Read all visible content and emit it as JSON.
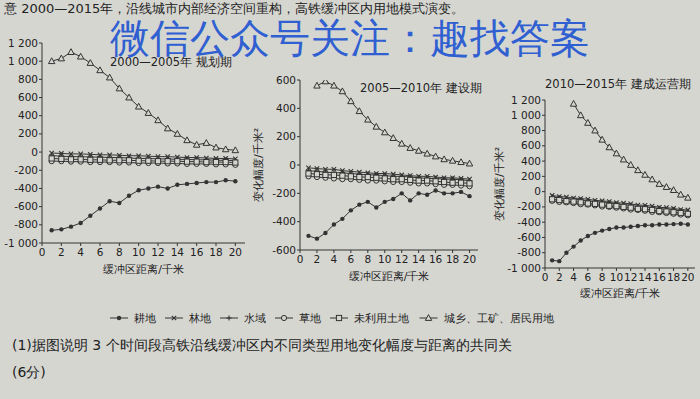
{
  "header": "意 2000—2015年，沿线城市内部经济空间重构，高铁缓冲区内用地模式演变。",
  "watermark": "微信公众号关注：趣找答案",
  "question": {
    "text": "(1)据图说明 3 个时间段高铁沿线缓冲区内不同类型用地变化幅度与距离的共同关",
    "score": "(6分)"
  },
  "chart_data": [
    {
      "type": "line",
      "title": "2000—2005年 规划期",
      "x_label": "缓冲区距离/千米",
      "x": [
        1,
        2,
        3,
        4,
        5,
        6,
        7,
        8,
        9,
        10,
        11,
        12,
        13,
        14,
        15,
        16,
        17,
        18,
        19,
        20
      ],
      "xlim": [
        0,
        21
      ],
      "xticks": [
        0,
        2,
        4,
        6,
        8,
        10,
        12,
        14,
        16,
        18,
        20
      ],
      "ylim": [
        -1000,
        1200
      ],
      "yticks": [
        {
          "value": -1000,
          "label": "-1 000"
        },
        -800,
        -600,
        -400,
        -200,
        0,
        200,
        400,
        600,
        800,
        {
          "value": 1000,
          "label": "1 000"
        },
        {
          "value": 1200,
          "label": "1 200"
        }
      ],
      "grid": false,
      "series": [
        {
          "name": "耕地",
          "color": "#333333",
          "marker": "dot",
          "values": [
            -860,
            -850,
            -820,
            -780,
            -700,
            -620,
            -540,
            -560,
            -480,
            -420,
            -400,
            -380,
            -400,
            -360,
            -350,
            -340,
            -330,
            -330,
            -310,
            -320
          ]
        },
        {
          "name": "林地",
          "color": "#333333",
          "marker": "x",
          "values": [
            -10,
            -15,
            -20,
            -20,
            -25,
            -30,
            -30,
            -35,
            -40,
            -40,
            -45,
            -50,
            -50,
            -55,
            -60,
            -60,
            -65,
            -70,
            -70,
            -75
          ]
        },
        {
          "name": "水域",
          "color": "#333333",
          "marker": "plus",
          "values": [
            -40,
            -45,
            -50,
            -50,
            -55,
            -55,
            -60,
            -60,
            -65,
            -70,
            -70,
            -75,
            -75,
            -80,
            -80,
            -85,
            -85,
            -90,
            -90,
            -95
          ]
        },
        {
          "name": "草地",
          "color": "#333333",
          "marker": "circle",
          "values": [
            -100,
            -100,
            -105,
            -105,
            -110,
            -110,
            -110,
            -115,
            -115,
            -120,
            -120,
            -120,
            -125,
            -125,
            -130,
            -130,
            -130,
            -135,
            -135,
            -140
          ]
        },
        {
          "name": "未利用土地",
          "color": "#333333",
          "marker": "square",
          "values": [
            -70,
            -75,
            -80,
            -80,
            -85,
            -85,
            -90,
            -90,
            -90,
            -95,
            -95,
            -100,
            -100,
            -100,
            -105,
            -105,
            -110,
            -110,
            -110,
            -115
          ]
        },
        {
          "name": "城乡、工矿、居民用地",
          "color": "#333333",
          "marker": "triangle",
          "values": [
            1000,
            1030,
            1100,
            1050,
            980,
            900,
            820,
            700,
            600,
            500,
            430,
            350,
            260,
            200,
            130,
            80,
            100,
            50,
            30,
            20
          ]
        }
      ]
    },
    {
      "type": "line",
      "title": "2005—2010年 建设期",
      "x_label": "缓冲区距离/千米",
      "y_label": "变化幅度/千米²",
      "x": [
        1,
        2,
        3,
        4,
        5,
        6,
        7,
        8,
        9,
        10,
        11,
        12,
        13,
        14,
        15,
        16,
        17,
        18,
        19,
        20
      ],
      "xlim": [
        0,
        21
      ],
      "xticks": [
        0,
        2,
        4,
        6,
        8,
        10,
        12,
        14,
        16,
        18,
        20
      ],
      "ylim": [
        -600,
        600
      ],
      "yticks": [
        -600,
        -400,
        -200,
        0,
        200,
        400,
        600
      ],
      "grid": false,
      "series": [
        {
          "color": "#333333",
          "marker": "dot",
          "values": [
            -500,
            -520,
            -480,
            -420,
            -380,
            -320,
            -280,
            -260,
            -300,
            -260,
            -240,
            -200,
            -250,
            -200,
            -210,
            -180,
            -200,
            -200,
            -190,
            -220
          ]
        },
        {
          "color": "#333333",
          "marker": "x",
          "values": [
            -20,
            -25,
            -30,
            -30,
            -40,
            -45,
            -50,
            -55,
            -60,
            -60,
            -65,
            -70,
            -75,
            -80,
            -80,
            -85,
            -90,
            -90,
            -95,
            -100
          ]
        },
        {
          "color": "#333333",
          "marker": "plus",
          "values": [
            -40,
            -45,
            -50,
            -55,
            -55,
            -60,
            -65,
            -70,
            -70,
            -75,
            -80,
            -80,
            -85,
            -90,
            -95,
            -95,
            -100,
            -100,
            -105,
            -110
          ]
        },
        {
          "color": "#333333",
          "marker": "circle",
          "values": [
            -80,
            -85,
            -90,
            -95,
            -100,
            -100,
            -105,
            -110,
            -110,
            -115,
            -120,
            -120,
            -125,
            -130,
            -130,
            -135,
            -140,
            -140,
            -145,
            -150
          ]
        },
        {
          "color": "#333333",
          "marker": "square",
          "values": [
            -60,
            -65,
            -70,
            -70,
            -75,
            -80,
            -85,
            -85,
            -90,
            -95,
            -100,
            -100,
            -105,
            -110,
            -110,
            -115,
            -120,
            -125,
            -125,
            -130
          ]
        },
        {
          "color": "#333333",
          "marker": "triangle",
          "values": [
            null,
            560,
            590,
            560,
            520,
            450,
            380,
            320,
            270,
            230,
            190,
            150,
            120,
            100,
            80,
            60,
            40,
            30,
            20,
            10
          ]
        }
      ]
    },
    {
      "type": "line",
      "title": "2010—2015年 建成运营期",
      "x_label": "缓冲区距离/千米",
      "y_label": "变化幅度/千米²",
      "x": [
        1,
        2,
        3,
        4,
        5,
        6,
        7,
        8,
        9,
        10,
        11,
        12,
        13,
        14,
        15,
        16,
        17,
        18,
        19,
        20
      ],
      "xlim": [
        0,
        21
      ],
      "xticks": [
        0,
        2,
        4,
        6,
        8,
        10,
        12,
        14,
        16,
        18,
        20
      ],
      "ylim": [
        -1000,
        1200
      ],
      "yticks": [
        {
          "value": -1000,
          "label": "-1 000"
        },
        -800,
        -600,
        -400,
        -200,
        0,
        200,
        400,
        600,
        800,
        {
          "value": 1000,
          "label": "1 000"
        },
        {
          "value": 1200,
          "label": "1 200"
        }
      ],
      "grid": false,
      "series": [
        {
          "color": "#333333",
          "marker": "dot",
          "values": [
            -900,
            -910,
            -800,
            -720,
            -640,
            -580,
            -540,
            -510,
            -490,
            -470,
            -470,
            -460,
            -450,
            -440,
            -440,
            -430,
            -430,
            -425,
            -420,
            -430
          ]
        },
        {
          "color": "#333333",
          "marker": "x",
          "values": [
            -50,
            -65,
            -70,
            -85,
            -90,
            -100,
            -115,
            -120,
            -130,
            -145,
            -150,
            -160,
            -175,
            -180,
            -190,
            -205,
            -210,
            -220,
            -235,
            -240
          ]
        },
        {
          "color": "#333333",
          "marker": "plus",
          "values": [
            -70,
            -80,
            -95,
            -100,
            -110,
            -125,
            -130,
            -140,
            -150,
            -165,
            -170,
            -180,
            -195,
            -200,
            -210,
            -220,
            -235,
            -240,
            -250,
            -260
          ]
        },
        {
          "color": "#333333",
          "marker": "circle",
          "values": [
            -120,
            -135,
            -140,
            -150,
            -165,
            -170,
            -180,
            -195,
            -200,
            -210,
            -220,
            -235,
            -240,
            -250,
            -265,
            -270,
            -280,
            -290,
            -300,
            -310
          ]
        },
        {
          "color": "#333333",
          "marker": "square",
          "values": [
            -100,
            -110,
            -125,
            -130,
            -140,
            -155,
            -160,
            -170,
            -185,
            -190,
            -200,
            -210,
            -225,
            -230,
            -240,
            -255,
            -260,
            -270,
            -280,
            -290
          ]
        },
        {
          "color": "#333333",
          "marker": "triangle",
          "values": [
            null,
            null,
            null,
            1150,
            1000,
            900,
            800,
            680,
            580,
            500,
            420,
            350,
            280,
            220,
            160,
            100,
            60,
            20,
            -40,
            -80
          ]
        }
      ]
    }
  ]
}
